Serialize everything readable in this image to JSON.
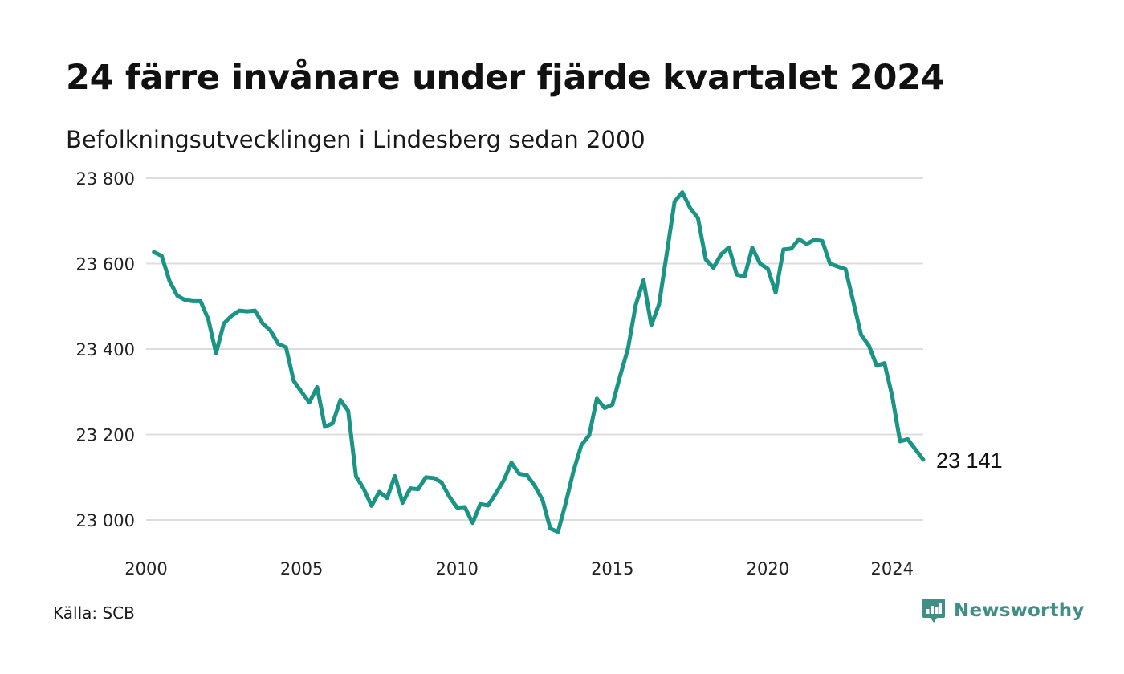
{
  "title": "24 färre invånare under fjärde kvartalet 2024",
  "subtitle": "Befolkningsutvecklingen i Lindesberg sedan 2000",
  "source": "Källa: SCB",
  "brand": {
    "name": "Newsworthy",
    "icon": "newsworthy-logo-icon",
    "color": "#3f8f87"
  },
  "chart_data": {
    "type": "line",
    "line_color": "#1a9484",
    "grid": true,
    "ylim": [
      23000,
      23800
    ],
    "y_ticks": [
      {
        "value": 23000,
        "label": "23 000"
      },
      {
        "value": 23200,
        "label": "23 200"
      },
      {
        "value": 23400,
        "label": "23 400"
      },
      {
        "value": 23600,
        "label": "23 600"
      },
      {
        "value": 23800,
        "label": "23 800"
      }
    ],
    "x_ticks": [
      {
        "value": 2000,
        "label": "2000"
      },
      {
        "value": 2005,
        "label": "2005"
      },
      {
        "value": 2010,
        "label": "2010"
      },
      {
        "value": 2015,
        "label": "2015"
      },
      {
        "value": 2020,
        "label": "2020"
      },
      {
        "value": 2024,
        "label": "2024"
      }
    ],
    "end_label": "23 141",
    "series": [
      {
        "x": [
          2000.25,
          2000.5,
          2000.75,
          2001,
          2001.25,
          2001.5,
          2001.75,
          2002,
          2002.25,
          2002.5,
          2002.75,
          2003,
          2003.25,
          2003.5,
          2003.75,
          2004,
          2004.25,
          2004.5,
          2004.75,
          2005,
          2005.25,
          2005.5,
          2005.75,
          2006,
          2006.25,
          2006.5,
          2006.75,
          2007,
          2007.25,
          2007.5,
          2007.75,
          2008,
          2008.25,
          2008.5,
          2008.75,
          2009,
          2009.25,
          2009.5,
          2009.75,
          2010,
          2010.25,
          2010.5,
          2010.75,
          2011,
          2011.25,
          2011.5,
          2011.75,
          2012,
          2012.25,
          2012.5,
          2012.75,
          2013,
          2013.25,
          2013.5,
          2013.75,
          2014,
          2014.25,
          2014.5,
          2014.75,
          2015,
          2015.25,
          2015.5,
          2015.75,
          2016,
          2016.25,
          2016.5,
          2016.75,
          2017,
          2017.25,
          2017.5,
          2017.75,
          2018,
          2018.25,
          2018.5,
          2018.75,
          2019,
          2019.25,
          2019.5,
          2019.75,
          2020,
          2020.25,
          2020.5,
          2020.75,
          2021,
          2021.25,
          2021.5,
          2021.75,
          2022,
          2022.25,
          2022.5,
          2022.75,
          2023,
          2023.25,
          2023.5,
          2023.75,
          2024,
          2024.25,
          2024.5,
          2024.75,
          2025
        ],
        "values": [
          23627,
          23618,
          23560,
          23525,
          23515,
          23512,
          23512,
          23470,
          23390,
          23460,
          23478,
          23490,
          23488,
          23490,
          23460,
          23443,
          23412,
          23404,
          23325,
          23300,
          23275,
          23311,
          23218,
          23226,
          23281,
          23255,
          23102,
          23073,
          23033,
          23066,
          23051,
          23103,
          23040,
          23074,
          23072,
          23100,
          23098,
          23088,
          23055,
          23029,
          23030,
          22993,
          23037,
          23034,
          23062,
          23092,
          23134,
          23108,
          23105,
          23080,
          23047,
          22980,
          22972,
          23040,
          23115,
          23175,
          23198,
          23284,
          23262,
          23270,
          23338,
          23401,
          23503,
          23561,
          23456,
          23505,
          23625,
          23745,
          23767,
          23730,
          23707,
          23610,
          23590,
          23622,
          23638,
          23574,
          23570,
          23637,
          23600,
          23588,
          23532,
          23633,
          23635,
          23657,
          23646,
          23656,
          23653,
          23600,
          23593,
          23587,
          23510,
          23433,
          23408,
          23361,
          23367,
          23290,
          23184,
          23189,
          23165,
          23141
        ]
      }
    ]
  }
}
